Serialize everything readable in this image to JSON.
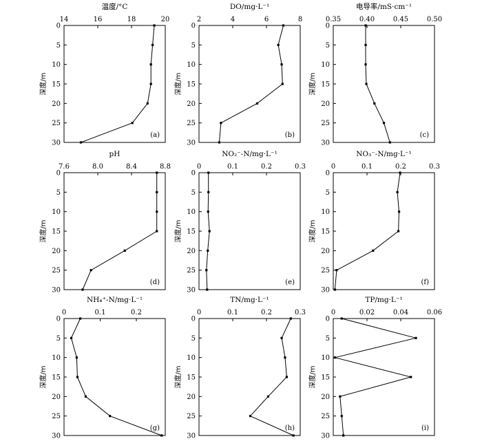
{
  "chart_data": [
    {
      "type": "line",
      "letter": "(a)",
      "title": "温度/°C",
      "ylabel": "深度/m",
      "xlim": [
        14,
        20
      ],
      "xticks": [
        14,
        16,
        18,
        20
      ],
      "xtick_labels": [
        "14",
        "16",
        "18",
        "20"
      ],
      "ylim": [
        0,
        30
      ],
      "yticks": [
        0,
        5,
        10,
        15,
        20,
        25,
        30
      ],
      "ytick_labels": [
        "0",
        "5",
        "10",
        "15",
        "20",
        "25",
        "30"
      ],
      "series": [
        {
          "x": [
            19.35,
            19.25,
            19.15,
            19.15,
            18.95,
            18.05,
            15.0
          ],
          "y": [
            0,
            5,
            10,
            15,
            20,
            25,
            30
          ]
        }
      ]
    },
    {
      "type": "line",
      "letter": "(b)",
      "title": "DO/mg·L⁻¹",
      "ylabel": "深度/m",
      "xlim": [
        2,
        8
      ],
      "xticks": [
        2,
        4,
        6,
        8
      ],
      "xtick_labels": [
        "2",
        "4",
        "6",
        "8"
      ],
      "ylim": [
        0,
        30
      ],
      "yticks": [
        0,
        5,
        10,
        15,
        20,
        25,
        30
      ],
      "ytick_labels": [
        "0",
        "5",
        "10",
        "15",
        "20",
        "25",
        "30"
      ],
      "series": [
        {
          "x": [
            7.0,
            6.7,
            6.9,
            6.95,
            5.45,
            3.3,
            3.2
          ],
          "y": [
            0,
            5,
            10,
            15,
            20,
            25,
            30
          ]
        }
      ]
    },
    {
      "type": "line",
      "letter": "(c)",
      "title": "电导率/mS·cm⁻¹",
      "ylabel": "深度/m",
      "xlim": [
        0.35,
        0.5
      ],
      "xticks": [
        0.35,
        0.4,
        0.45,
        0.5
      ],
      "xtick_labels": [
        "0.35",
        "0.40",
        "0.45",
        "0.50"
      ],
      "ylim": [
        0,
        30
      ],
      "yticks": [
        0,
        5,
        10,
        15,
        20,
        25,
        30
      ],
      "ytick_labels": [
        "0",
        "5",
        "10",
        "15",
        "20",
        "25",
        "30"
      ],
      "series": [
        {
          "x": [
            0.398,
            0.398,
            0.398,
            0.399,
            0.411,
            0.425,
            0.434
          ],
          "y": [
            0,
            5,
            10,
            15,
            20,
            25,
            30
          ]
        }
      ]
    },
    {
      "type": "line",
      "letter": "(d)",
      "title": "pH",
      "ylabel": "深度/m",
      "xlim": [
        7.6,
        8.8
      ],
      "xticks": [
        7.6,
        8.0,
        8.4,
        8.8
      ],
      "xtick_labels": [
        "7.6",
        "8.0",
        "8.4",
        "8.8"
      ],
      "ylim": [
        0,
        30
      ],
      "yticks": [
        0,
        5,
        10,
        15,
        20,
        25,
        30
      ],
      "ytick_labels": [
        "0",
        "5",
        "10",
        "15",
        "20",
        "25",
        "30"
      ],
      "series": [
        {
          "x": [
            8.7,
            8.7,
            8.7,
            8.7,
            8.32,
            7.92,
            7.82
          ],
          "y": [
            0,
            5,
            10,
            15,
            20,
            25,
            30
          ]
        }
      ]
    },
    {
      "type": "line",
      "letter": "(e)",
      "title": "NO₂⁻-N/mg·L⁻¹",
      "ylabel": "深度/m",
      "xlim": [
        0,
        0.3
      ],
      "xticks": [
        0,
        0.1,
        0.2,
        0.3
      ],
      "xtick_labels": [
        "0",
        "0.1",
        "0.2",
        "0.3"
      ],
      "ylim": [
        0,
        30
      ],
      "yticks": [
        0,
        5,
        10,
        15,
        20,
        25,
        30
      ],
      "ytick_labels": [
        "0",
        "5",
        "10",
        "15",
        "20",
        "25",
        "30"
      ],
      "series": [
        {
          "x": [
            0.028,
            0.028,
            0.027,
            0.031,
            0.026,
            0.022,
            0.024
          ],
          "y": [
            0,
            5,
            10,
            15,
            20,
            25,
            30
          ]
        }
      ]
    },
    {
      "type": "line",
      "letter": "(f)",
      "title": "NO₃⁻-N/mg·L⁻¹",
      "ylabel": "深度/m",
      "xlim": [
        0,
        0.3
      ],
      "xticks": [
        0,
        0.1,
        0.2,
        0.3
      ],
      "xtick_labels": [
        "0",
        "0.1",
        "0.2",
        "0.3"
      ],
      "ylim": [
        0,
        30
      ],
      "yticks": [
        0,
        5,
        10,
        15,
        20,
        25,
        30
      ],
      "ytick_labels": [
        "0",
        "5",
        "10",
        "15",
        "20",
        "25",
        "30"
      ],
      "series": [
        {
          "x": [
            0.198,
            0.19,
            0.195,
            0.193,
            0.118,
            0.01,
            0.005
          ],
          "y": [
            0,
            5,
            10,
            15,
            20,
            25,
            30
          ]
        }
      ]
    },
    {
      "type": "line",
      "letter": "(g)",
      "title": "NH₄⁺-N/mg·L⁻¹",
      "ylabel": "深度/m",
      "xlim": [
        0,
        0.28
      ],
      "xticks": [
        0,
        0.1,
        0.2
      ],
      "xtick_labels": [
        "0",
        "0.1",
        "0.2"
      ],
      "ylim": [
        0,
        30
      ],
      "yticks": [
        0,
        5,
        10,
        15,
        20,
        25,
        30
      ],
      "ytick_labels": [
        "0",
        "5",
        "10",
        "15",
        "20",
        "25",
        "30"
      ],
      "series": [
        {
          "x": [
            0.045,
            0.02,
            0.035,
            0.037,
            0.06,
            0.127,
            0.27
          ],
          "y": [
            0,
            5,
            10,
            15,
            20,
            25,
            30
          ]
        }
      ]
    },
    {
      "type": "line",
      "letter": "(h)",
      "title": "TN/mg·L⁻¹",
      "ylabel": "深度/m",
      "xlim": [
        0,
        0.3
      ],
      "xticks": [
        0,
        0.1,
        0.2,
        0.3
      ],
      "xtick_labels": [
        "0",
        "0.1",
        "0.2",
        "0.3"
      ],
      "ylim": [
        0,
        30
      ],
      "yticks": [
        0,
        5,
        10,
        15,
        20,
        25,
        30
      ],
      "ytick_labels": [
        "0",
        "5",
        "10",
        "15",
        "20",
        "25",
        "30"
      ],
      "series": [
        {
          "x": [
            0.272,
            0.245,
            0.255,
            0.26,
            0.205,
            0.152,
            0.28
          ],
          "y": [
            0,
            5,
            10,
            15,
            20,
            25,
            30
          ]
        }
      ]
    },
    {
      "type": "line",
      "letter": "(i)",
      "title": "TP/mg·L⁻¹",
      "ylabel": "深度/m",
      "xlim": [
        0,
        0.06
      ],
      "xticks": [
        0,
        0.02,
        0.04,
        0.06
      ],
      "xtick_labels": [
        "0",
        "0.02",
        "0.04",
        "0.06"
      ],
      "ylim": [
        0,
        30
      ],
      "yticks": [
        0,
        5,
        10,
        15,
        20,
        25,
        30
      ],
      "ytick_labels": [
        "0",
        "5",
        "10",
        "15",
        "20",
        "25",
        "30"
      ],
      "series": [
        {
          "x": [
            0.005,
            0.049,
            0.001,
            0.046,
            0.004,
            0.005,
            0.006
          ],
          "y": [
            0,
            5,
            10,
            15,
            20,
            25,
            30
          ]
        }
      ]
    }
  ]
}
